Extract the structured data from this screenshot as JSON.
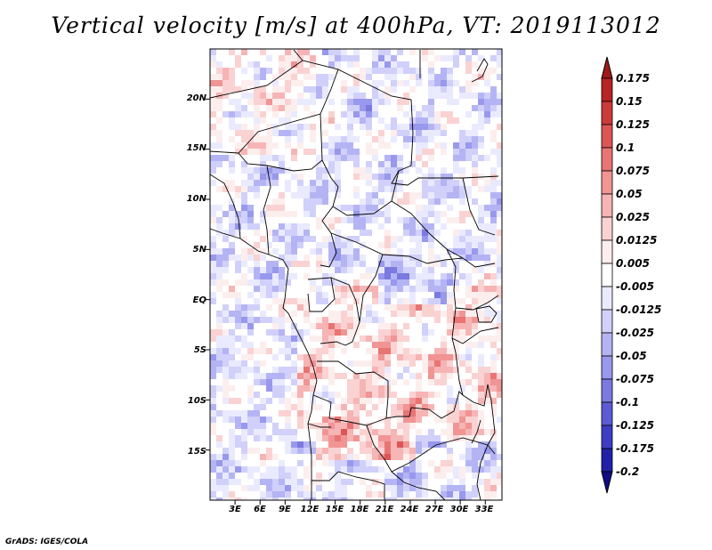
{
  "title": "Vertical velocity [m/s] at 400hPa, VT: 2019113012",
  "credit": "GrADS: IGES/COLA",
  "lat_labels": [
    "20N",
    "15N",
    "10N",
    "5N",
    "EQ",
    "5S",
    "10S",
    "15S"
  ],
  "lon_labels": [
    "3E",
    "6E",
    "9E",
    "12E",
    "15E",
    "18E",
    "21E",
    "24E",
    "27E",
    "30E",
    "33E"
  ],
  "colorbar": {
    "labels": [
      "0.175",
      "0.15",
      "0.125",
      "0.1",
      "0.075",
      "0.05",
      "0.025",
      "0.0125",
      "0.005",
      "-0.005",
      "-0.0125",
      "-0.025",
      "-0.05",
      "-0.075",
      "-0.1",
      "-0.125",
      "-0.175",
      "-0.2"
    ],
    "colors": [
      "#a01818",
      "#b82424",
      "#cc3a3a",
      "#dc5656",
      "#e87474",
      "#f09494",
      "#f6b4b4",
      "#fad2d2",
      "#fdeeee",
      "#ffffff",
      "#eaeaff",
      "#d0d0fa",
      "#b4b4f4",
      "#9898ec",
      "#7a7ae0",
      "#5c5cd4",
      "#3e3ec4",
      "#2020a8",
      "#0e0e86"
    ]
  },
  "chart_data": {
    "type": "heatmap",
    "title": "Vertical velocity [m/s] at 400hPa, VT: 2019113012",
    "variable": "Vertical velocity",
    "units": "m/s",
    "level": "400hPa",
    "valid_time": "2019113012",
    "lon_range": [
      0,
      35
    ],
    "lat_range": [
      -20,
      25
    ],
    "contour_levels": [
      -0.2,
      -0.175,
      -0.125,
      -0.1,
      -0.075,
      -0.05,
      -0.025,
      -0.0125,
      -0.005,
      0.005,
      0.0125,
      0.025,
      0.05,
      0.075,
      0.1,
      0.125,
      0.15,
      0.175
    ]
  }
}
